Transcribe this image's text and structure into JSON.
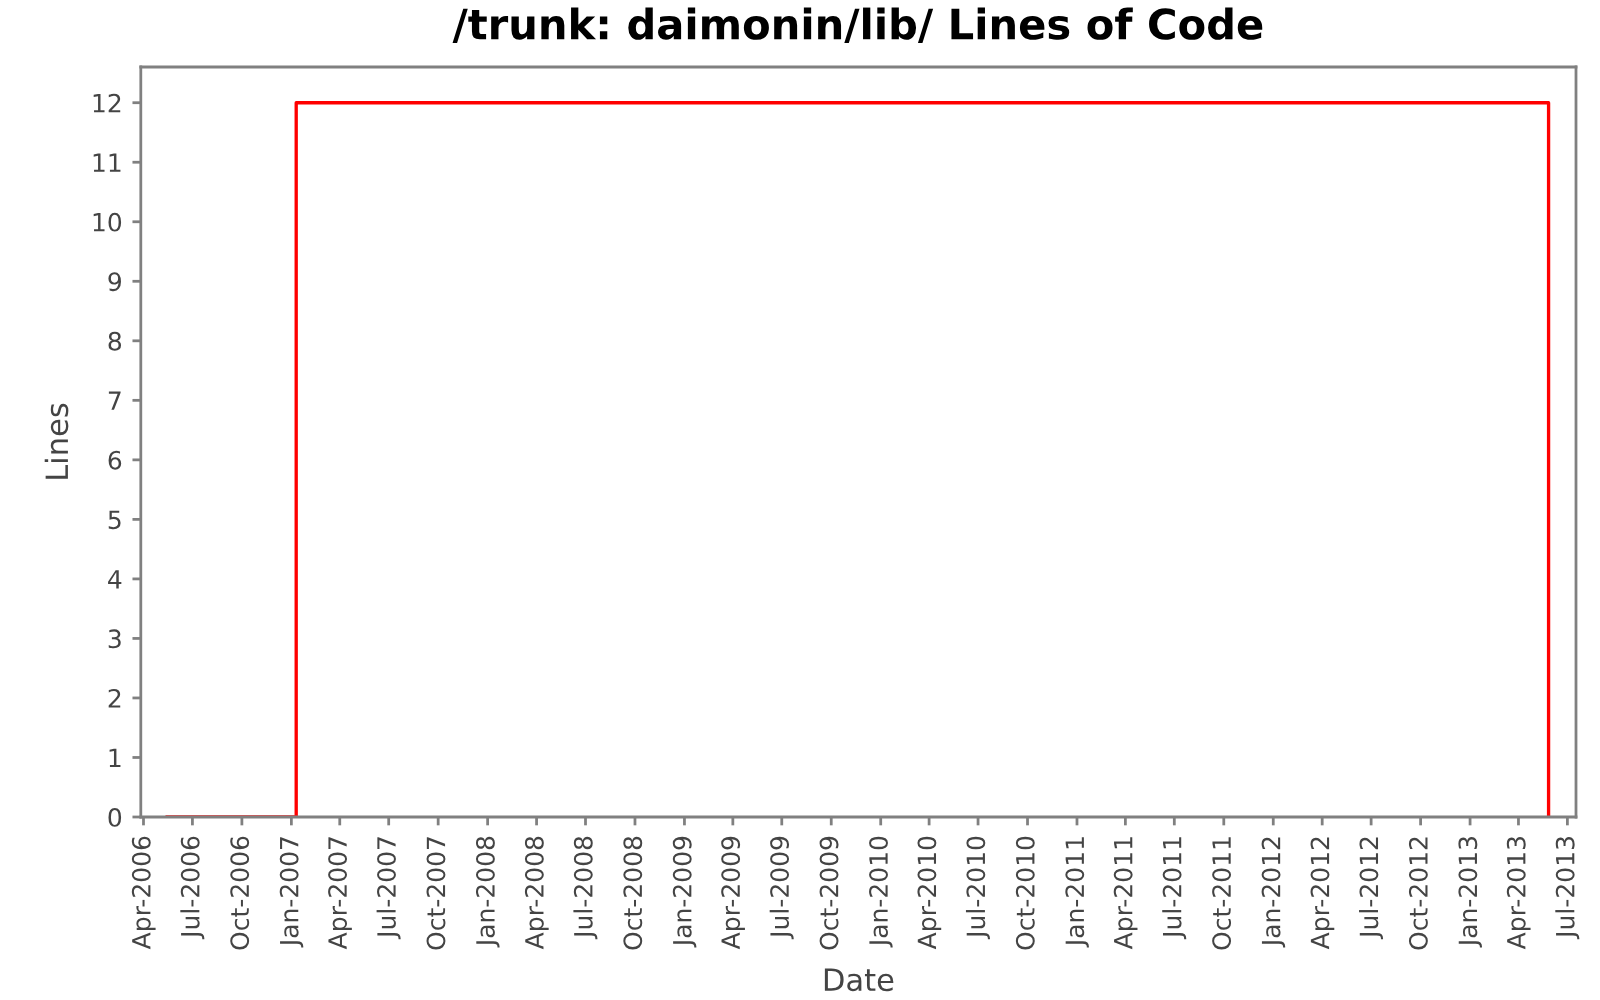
{
  "chart_data": {
    "type": "step",
    "title": "/trunk: daimonin/lib/ Lines of Code",
    "xlabel": "Date",
    "ylabel": "Lines",
    "x": [
      "2006-05-15",
      "2007-01-10",
      "2013-05-27"
    ],
    "values": [
      0,
      12,
      0
    ],
    "color": "#ff0000",
    "xlim": [
      "2006-03-27",
      "2013-07-17"
    ],
    "ylim": [
      0,
      12.6
    ],
    "xticks": [
      {
        "value": "2006-04-01",
        "label": "Apr-2006"
      },
      {
        "value": "2006-07-01",
        "label": "Jul-2006"
      },
      {
        "value": "2006-10-01",
        "label": "Oct-2006"
      },
      {
        "value": "2007-01-01",
        "label": "Jan-2007"
      },
      {
        "value": "2007-04-01",
        "label": "Apr-2007"
      },
      {
        "value": "2007-07-01",
        "label": "Jul-2007"
      },
      {
        "value": "2007-10-01",
        "label": "Oct-2007"
      },
      {
        "value": "2008-01-01",
        "label": "Jan-2008"
      },
      {
        "value": "2008-04-01",
        "label": "Apr-2008"
      },
      {
        "value": "2008-07-01",
        "label": "Jul-2008"
      },
      {
        "value": "2008-10-01",
        "label": "Oct-2008"
      },
      {
        "value": "2009-01-01",
        "label": "Jan-2009"
      },
      {
        "value": "2009-04-01",
        "label": "Apr-2009"
      },
      {
        "value": "2009-07-01",
        "label": "Jul-2009"
      },
      {
        "value": "2009-10-01",
        "label": "Oct-2009"
      },
      {
        "value": "2010-01-01",
        "label": "Jan-2010"
      },
      {
        "value": "2010-04-01",
        "label": "Apr-2010"
      },
      {
        "value": "2010-07-01",
        "label": "Jul-2010"
      },
      {
        "value": "2010-10-01",
        "label": "Oct-2010"
      },
      {
        "value": "2011-01-01",
        "label": "Jan-2011"
      },
      {
        "value": "2011-04-01",
        "label": "Apr-2011"
      },
      {
        "value": "2011-07-01",
        "label": "Jul-2011"
      },
      {
        "value": "2011-10-01",
        "label": "Oct-2011"
      },
      {
        "value": "2012-01-01",
        "label": "Jan-2012"
      },
      {
        "value": "2012-04-01",
        "label": "Apr-2012"
      },
      {
        "value": "2012-07-01",
        "label": "Jul-2012"
      },
      {
        "value": "2012-10-01",
        "label": "Oct-2012"
      },
      {
        "value": "2013-01-01",
        "label": "Jan-2013"
      },
      {
        "value": "2013-04-01",
        "label": "Apr-2013"
      },
      {
        "value": "2013-07-01",
        "label": "Jul-2013"
      }
    ],
    "yticks": [
      0,
      1,
      2,
      3,
      4,
      5,
      6,
      7,
      8,
      9,
      10,
      11,
      12
    ]
  }
}
